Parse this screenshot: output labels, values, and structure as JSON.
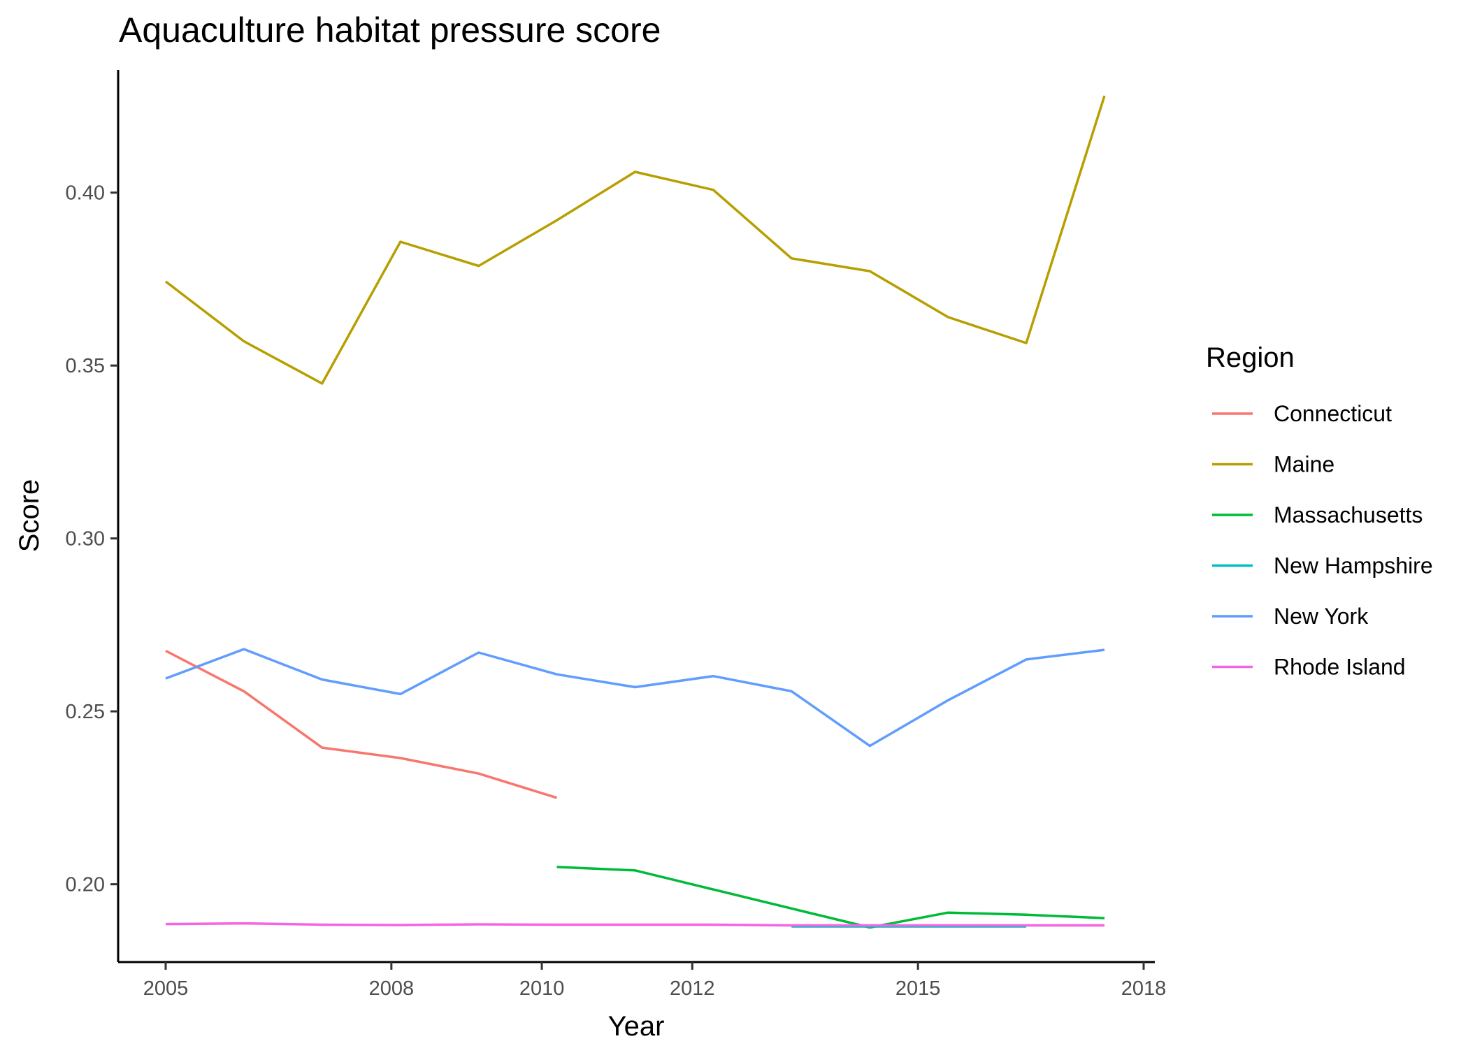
{
  "chart_data": {
    "type": "line",
    "title": "Aquaculture habitat pressure score",
    "xlabel": "Year",
    "ylabel": "Score",
    "xlim": [
      2004.8,
      2018.1
    ],
    "ylim": [
      0.1775,
      0.4355
    ],
    "x_ticks": [
      2005,
      2008,
      2010,
      2012,
      2015,
      2018
    ],
    "x_tick_labels": [
      "2005",
      "2008",
      "2010",
      "2012",
      "2015",
      "2018"
    ],
    "y_ticks": [
      0.2,
      0.25,
      0.3,
      0.35,
      0.4
    ],
    "y_tick_labels": [
      "0.20",
      "0.25",
      "0.30",
      "0.35",
      "0.40"
    ],
    "grid": false,
    "legend": {
      "title": "Region",
      "position": "right"
    },
    "series": [
      {
        "name": "Connecticut",
        "color": "#F8766D",
        "x": [
          2005,
          2006,
          2007,
          2008,
          2009,
          2010
        ],
        "y": [
          0.2675,
          0.2558,
          0.2395,
          0.2365,
          0.232,
          0.225
        ]
      },
      {
        "name": "Maine",
        "color": "#B79F00",
        "x": [
          2005,
          2006,
          2007,
          2008,
          2009,
          2010,
          2011,
          2012,
          2013,
          2014,
          2015,
          2016,
          2017
        ],
        "y": [
          0.3743,
          0.357,
          0.3448,
          0.3858,
          0.3788,
          0.392,
          0.406,
          0.4008,
          0.381,
          0.3773,
          0.364,
          0.3565,
          0.428
        ]
      },
      {
        "name": "Massachusetts",
        "color": "#00BA38",
        "x": [
          2010,
          2011,
          2012,
          2013,
          2014,
          2015,
          2016,
          2017
        ],
        "y": [
          0.205,
          0.204,
          0.1985,
          0.193,
          0.1875,
          0.1918,
          0.1912,
          0.1902
        ]
      },
      {
        "name": "New Hampshire",
        "color": "#00BFC4",
        "x": [
          2013,
          2014,
          2015,
          2016
        ],
        "y": [
          0.1878,
          0.1878,
          0.1878,
          0.1878
        ]
      },
      {
        "name": "New York",
        "color": "#619CFF",
        "x": [
          2005,
          2006,
          2007,
          2008,
          2009,
          2010,
          2011,
          2012,
          2013,
          2014,
          2015,
          2016,
          2017
        ],
        "y": [
          0.2595,
          0.268,
          0.2592,
          0.255,
          0.267,
          0.2607,
          0.257,
          0.2602,
          0.2558,
          0.24,
          0.2532,
          0.265,
          0.2678
        ]
      },
      {
        "name": "Rhode Island",
        "color": "#F564E3",
        "x": [
          2005,
          2006,
          2007,
          2008,
          2009,
          2010,
          2011,
          2012,
          2013,
          2014,
          2015,
          2016,
          2017
        ],
        "y": [
          0.1885,
          0.1887,
          0.1883,
          0.1882,
          0.1884,
          0.1883,
          0.1883,
          0.1883,
          0.1881,
          0.1881,
          0.1881,
          0.1881,
          0.1881
        ]
      }
    ]
  }
}
